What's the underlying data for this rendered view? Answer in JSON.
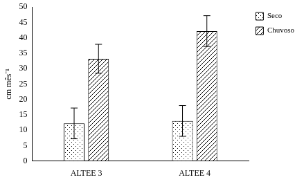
{
  "chart_data": {
    "type": "bar",
    "y_label": "cm mês⁻¹",
    "categories": [
      "ALTEE 3",
      "ALTEE 4"
    ],
    "series": [
      {
        "name": "Seco",
        "color": "#000000",
        "values": [
          12.2,
          13
        ],
        "errors": [
          5,
          5
        ]
      },
      {
        "name": "Chuvoso",
        "color": "#000000",
        "values": [
          33.2,
          42.2
        ],
        "errors": [
          4.7,
          5
        ]
      }
    ],
    "ylim": [
      0,
      50
    ],
    "yticks": [
      0,
      5,
      10,
      15,
      20,
      25,
      30,
      35,
      40,
      45,
      50
    ],
    "grid": false,
    "legend": "right"
  }
}
